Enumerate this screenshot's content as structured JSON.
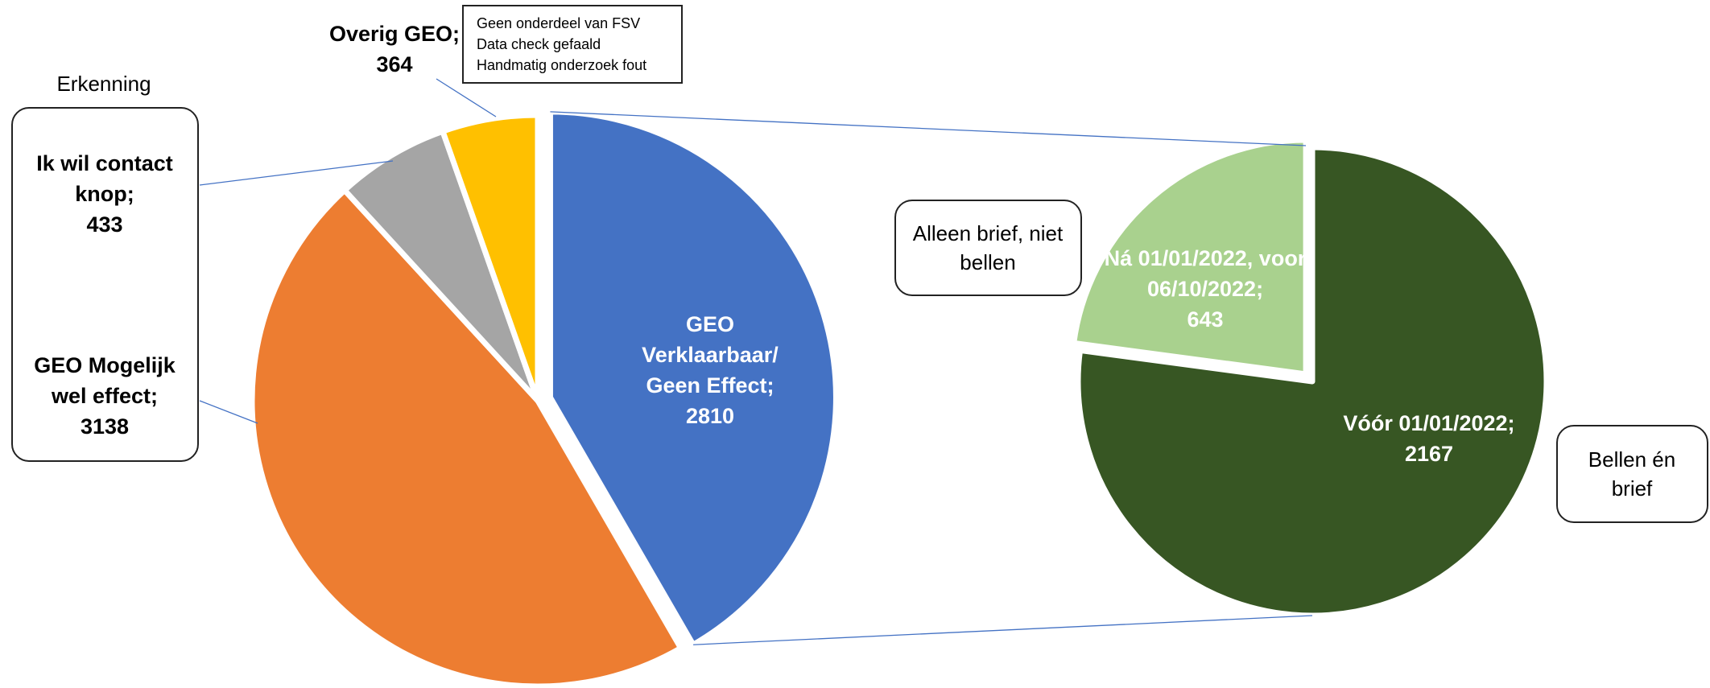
{
  "chart_data": {
    "type": "pie-of-pie",
    "categories": [
      "GEO Verklaarbaar/ Geen Effect;",
      "GEO Mogelijk wel effect;",
      "Ik wil contact knop;",
      "Overig GEO;"
    ],
    "values": [
      2810,
      3138,
      433,
      364
    ],
    "colors": [
      "#4472C4",
      "#ED7D31",
      "#A5A5A5",
      "#FFC000"
    ],
    "secondary": {
      "categories": [
        "Vóór 01/01/2022;",
        "Ná 01/01/2022, voor 06/10/2022;"
      ],
      "values": [
        2167,
        643
      ],
      "colors": [
        "#375623",
        "#A9D18E"
      ]
    },
    "annotations": {
      "group_label": "Erkenning",
      "overig_note": [
        "Geen onderdeel van FSV",
        "Data check gefaald",
        "Handmatig onderzoek fout"
      ],
      "secondary_small": "Alleen brief, niet bellen",
      "secondary_large": "Bellen én brief"
    }
  }
}
